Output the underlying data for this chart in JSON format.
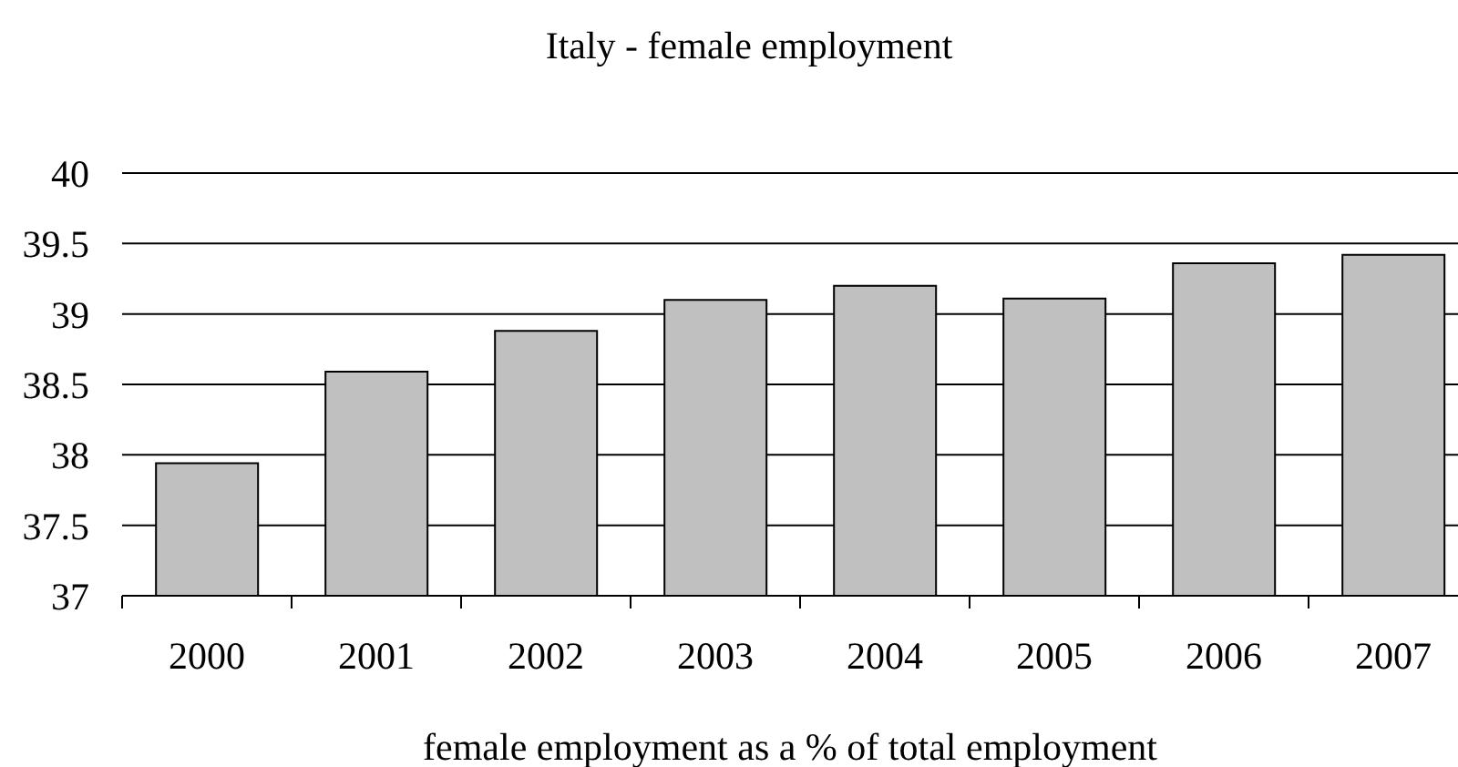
{
  "chart_data": {
    "type": "bar",
    "title": "Italy - female employment",
    "xlabel": "female employment as a % of total employment",
    "categories": [
      "2000",
      "2001",
      "2002",
      "2003",
      "2004",
      "2005",
      "2006",
      "2007"
    ],
    "values": [
      37.94,
      38.59,
      38.88,
      39.1,
      39.2,
      39.11,
      39.36,
      39.42
    ],
    "color": "#c0c0c0",
    "ylim": [
      37,
      40
    ],
    "yticks": [
      37,
      37.5,
      38,
      38.5,
      39,
      39.5,
      40
    ],
    "grid": "y"
  }
}
